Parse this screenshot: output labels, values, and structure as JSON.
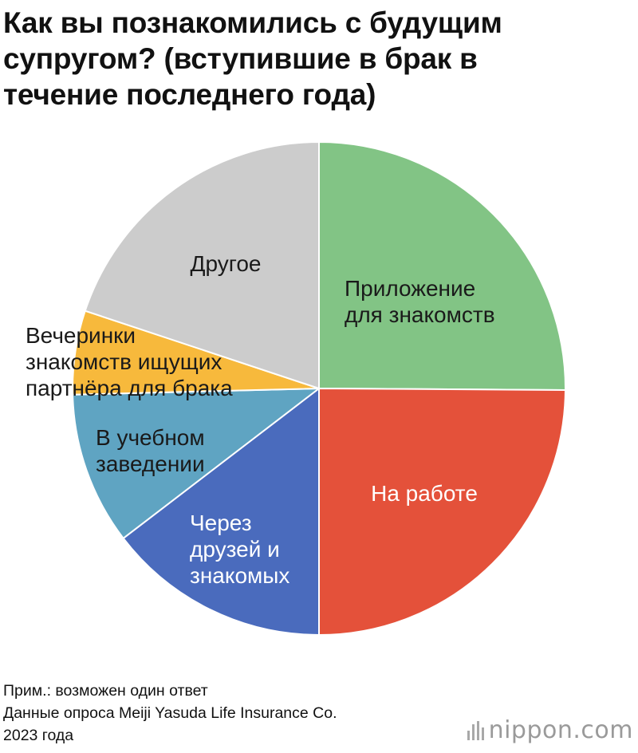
{
  "title_lines": [
    "Как вы познакомились с будущим",
    "супругом? (вступившие в брак в",
    "течение последнего года)"
  ],
  "chart_data": {
    "type": "pie",
    "title": "Как вы познакомились с будущим супругом? (вступившие в брак в течение последнего года)",
    "start": "12 o'clock",
    "direction": "clockwise",
    "labels_inside": true,
    "slices": [
      {
        "label": "Приложение для знакомств",
        "label_lines": [
          "Приложение",
          "для знакомств"
        ],
        "value": 25.1,
        "color": "#82c485",
        "label_color": "#1a1a1a"
      },
      {
        "label": "На работе",
        "label_lines": [
          "На работе"
        ],
        "value": 24.9,
        "color": "#e4513a",
        "label_color": "#ffffff"
      },
      {
        "label": "Через друзей и знакомых",
        "label_lines": [
          "Через",
          "друзей и",
          "знакомых"
        ],
        "value": 14.6,
        "color": "#4a6bbd",
        "label_color": "#ffffff"
      },
      {
        "label": "В учебном заведении",
        "label_lines": [
          "В учебном",
          "заведении"
        ],
        "value": 10.0,
        "color": "#5fa4c2",
        "label_color": "#1a1a1a"
      },
      {
        "label": "Вечеринки знакомств ищущих партнёра для брака",
        "label_lines": [
          "Вечеринки",
          "знакомств ищущих",
          "партнёра для брака"
        ],
        "value": 5.5,
        "color": "#f7b93c",
        "label_color": "#1a1a1a"
      },
      {
        "label": "Другое",
        "label_lines": [
          "Другое"
        ],
        "value": 19.9,
        "color": "#cccccc",
        "label_color": "#1a1a1a"
      }
    ],
    "legend": "none"
  },
  "notes": [
    "Прим.: возможен один ответ",
    "Данные опроса Meiji Yasuda Life Insurance Co.",
    "2023 года"
  ],
  "logo": {
    "text": "nippon.com",
    "icon": "nippon-bars-icon"
  }
}
